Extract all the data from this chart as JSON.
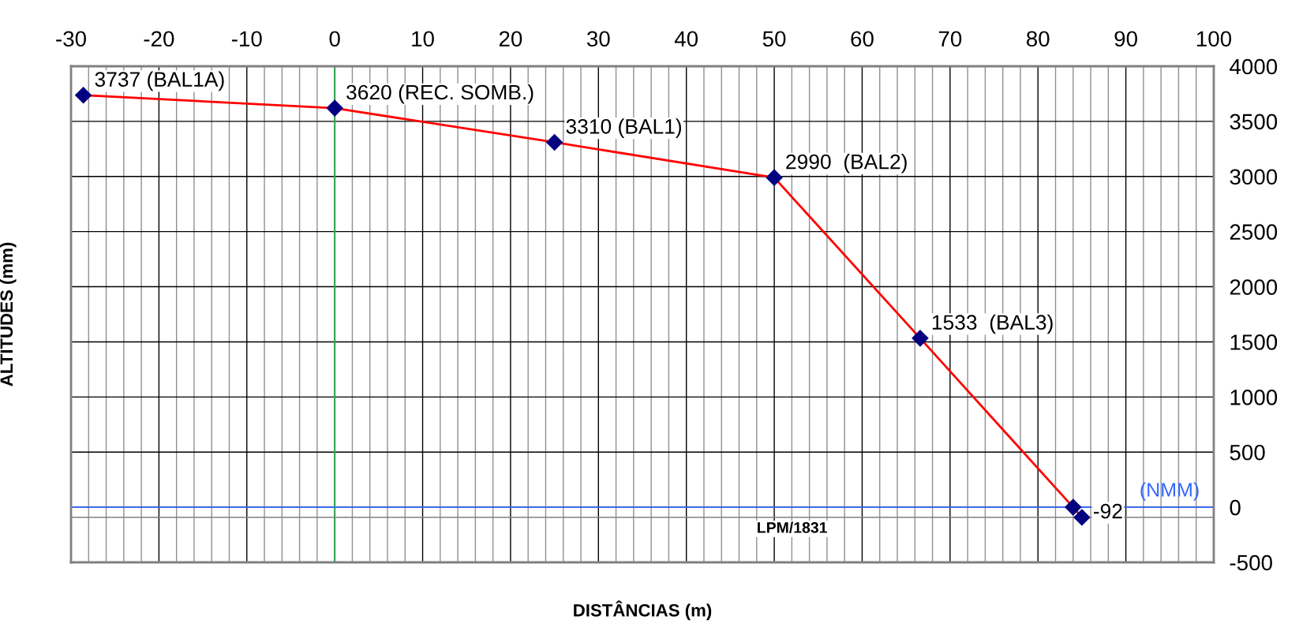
{
  "chart_data": {
    "type": "line",
    "xlabel": "DISTÂNCIAS (m)",
    "ylabel": "ALTITUDES (mm)",
    "x": [
      -28.6,
      0,
      25,
      50,
      66.6,
      84,
      85
    ],
    "series": [
      {
        "color": "#ff0000",
        "values": [
          3737,
          3620,
          3310,
          2990,
          1533,
          0,
          -92
        ]
      }
    ],
    "marker": "diamond",
    "line_style": "solid",
    "grid": true,
    "legend": false,
    "xlim": [
      -30,
      100
    ],
    "ylim": [
      -500,
      4000
    ],
    "xticks": [
      -30,
      {
        "value": -28,
        "label": null
      },
      {
        "value": -26,
        "label": null
      },
      {
        "value": -24,
        "label": null
      },
      {
        "value": -22,
        "label": null
      },
      -20,
      {
        "value": -18,
        "label": null
      },
      {
        "value": -16,
        "label": null
      },
      {
        "value": -14,
        "label": null
      },
      {
        "value": -12,
        "label": null
      },
      -10,
      {
        "value": -8,
        "label": null
      },
      {
        "value": -6,
        "label": null
      },
      {
        "value": -4,
        "label": null
      },
      {
        "value": -2,
        "label": null
      },
      0,
      {
        "value": 2,
        "label": null
      },
      {
        "value": 4,
        "label": null
      },
      {
        "value": 6,
        "label": null
      },
      {
        "value": 8,
        "label": null
      },
      10,
      {
        "value": 12,
        "label": null
      },
      {
        "value": 14,
        "label": null
      },
      {
        "value": 16,
        "label": null
      },
      {
        "value": 18,
        "label": null
      },
      20,
      {
        "value": 22,
        "label": null
      },
      {
        "value": 24,
        "label": null
      },
      {
        "value": 26,
        "label": null
      },
      {
        "value": 28,
        "label": null
      },
      30,
      {
        "value": 32,
        "label": null
      },
      {
        "value": 34,
        "label": null
      },
      {
        "value": 36,
        "label": null
      },
      {
        "value": 38,
        "label": null
      },
      40,
      {
        "value": 42,
        "label": null
      },
      {
        "value": 44,
        "label": null
      },
      {
        "value": 46,
        "label": null
      },
      {
        "value": 48,
        "label": null
      },
      50,
      {
        "value": 52,
        "label": null
      },
      {
        "value": 54,
        "label": null
      },
      {
        "value": 56,
        "label": null
      },
      {
        "value": 58,
        "label": null
      },
      60,
      {
        "value": 62,
        "label": null
      },
      {
        "value": 64,
        "label": null
      },
      {
        "value": 66,
        "label": null
      },
      {
        "value": 68,
        "label": null
      },
      70,
      {
        "value": 72,
        "label": null
      },
      {
        "value": 74,
        "label": null
      },
      {
        "value": 76,
        "label": null
      },
      {
        "value": 78,
        "label": null
      },
      80,
      {
        "value": 82,
        "label": null
      },
      {
        "value": 84,
        "label": null
      },
      {
        "value": 86,
        "label": null
      },
      {
        "value": 88,
        "label": null
      },
      90,
      {
        "value": 92,
        "label": null
      },
      {
        "value": 94,
        "label": null
      },
      {
        "value": 96,
        "label": null
      },
      {
        "value": 98,
        "label": null
      },
      100
    ],
    "yticks": [
      -500,
      0,
      500,
      1000,
      1500,
      2000,
      2500,
      3000,
      3500,
      4000
    ],
    "ref_lines": [
      {
        "axis": "x",
        "value": 0,
        "color": "#33aa55"
      },
      {
        "axis": "y",
        "value": 0,
        "label": "(NMM)",
        "color": "#3366ff"
      },
      {
        "axis": "y",
        "value": -92,
        "label": "LPM/1831",
        "color": "#808080"
      }
    ],
    "annotations": [
      {
        "text": "3737 (BAL1A)",
        "x": -28.6,
        "y": 3737
      },
      {
        "text": "3620 (REC. SOMB.)",
        "x": 0,
        "y": 3620
      },
      {
        "text": "3310 (BAL1)",
        "x": 25,
        "y": 3310
      },
      {
        "text": "2990  (BAL2)",
        "x": 50,
        "y": 2990
      },
      {
        "text": "1533  (BAL3)",
        "x": 66.6,
        "y": 1533
      },
      {
        "text": "-92",
        "x": 85,
        "y": -92
      }
    ]
  }
}
